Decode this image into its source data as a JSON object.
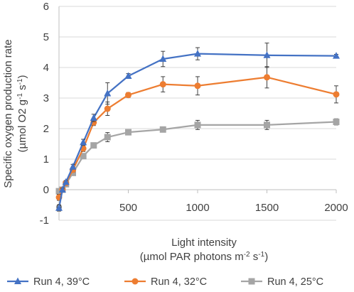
{
  "chart_data": {
    "type": "line",
    "title": "",
    "xlabel_line1": "Light intensity",
    "xlabel_line2": {
      "pre": "(µmol PAR photons m",
      "sup1": "-2",
      "mid": " s",
      "sup2": "-1",
      "post": ")"
    },
    "ylabel_line1": "Specific oxygen production rate",
    "ylabel_line2": {
      "pre": "(µmol O2 g",
      "sup1": "-1",
      "mid": " s",
      "sup2": "-1",
      "post": ")"
    },
    "xlim": [
      0,
      2000
    ],
    "ylim": [
      -1,
      6
    ],
    "xticks": [
      0,
      500,
      1000,
      1500,
      2000
    ],
    "yticks": [
      -1,
      0,
      1,
      2,
      3,
      4,
      5,
      6
    ],
    "grid": "horizontal",
    "legend_position": "bottom",
    "series": [
      {
        "name": "Run 4, 39°C",
        "color": "#4472C4",
        "marker": "triangle",
        "x": [
          0,
          25,
          50,
          100,
          175,
          250,
          350,
          500,
          750,
          1000,
          1500,
          2000
        ],
        "y": [
          -0.6,
          0.0,
          0.25,
          0.75,
          1.55,
          2.35,
          3.15,
          3.72,
          4.28,
          4.45,
          4.4,
          4.38
        ],
        "err": [
          0.1,
          0.05,
          0.05,
          0.08,
          0.1,
          0.12,
          0.35,
          0.08,
          0.25,
          0.2,
          0.4,
          0.05
        ]
      },
      {
        "name": "Run 4, 32°C",
        "color": "#ED7D31",
        "marker": "circle",
        "x": [
          0,
          25,
          50,
          100,
          175,
          250,
          350,
          500,
          750,
          1000,
          1500,
          2000
        ],
        "y": [
          -0.25,
          0.0,
          0.22,
          0.65,
          1.35,
          2.2,
          2.65,
          3.1,
          3.45,
          3.4,
          3.68,
          3.12
        ],
        "err": [
          0.1,
          0.05,
          0.05,
          0.08,
          0.1,
          0.1,
          0.22,
          0.08,
          0.25,
          0.3,
          0.35,
          0.28
        ]
      },
      {
        "name": "Run 4, 25°C",
        "color": "#A5A5A5",
        "marker": "square",
        "x": [
          0,
          25,
          50,
          100,
          175,
          250,
          350,
          500,
          750,
          1000,
          1500,
          2000
        ],
        "y": [
          -0.05,
          0.0,
          0.18,
          0.55,
          1.1,
          1.45,
          1.72,
          1.88,
          1.97,
          2.12,
          2.12,
          2.22
        ],
        "err": [
          0.05,
          0.05,
          0.05,
          0.05,
          0.05,
          0.08,
          0.15,
          0.05,
          0.05,
          0.15,
          0.15,
          0.1
        ]
      }
    ]
  }
}
